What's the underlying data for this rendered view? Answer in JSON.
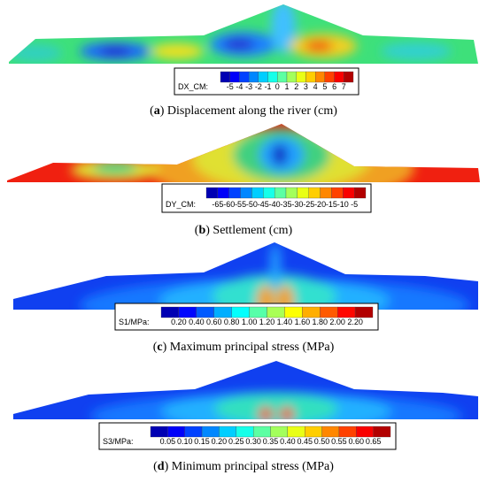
{
  "panels": [
    {
      "caption": [
        "(",
        "a",
        ") Displacement along the river (cm)"
      ],
      "legend_title": "DX_CM:",
      "legend_ticks": [
        "-5",
        "-4",
        "-3",
        "-2",
        "-1",
        "0",
        "1",
        "2",
        "3",
        "4",
        "5",
        "6",
        "7"
      ]
    },
    {
      "caption": [
        "(",
        "b",
        ") Settlement (cm)"
      ],
      "legend_title": "DY_CM:",
      "legend_ticks": [
        "-65",
        "-60",
        "-55",
        "-50",
        "-45",
        "-40",
        "-35",
        "-30",
        "-25",
        "-20",
        "-15",
        "-10",
        "-5"
      ]
    },
    {
      "caption": [
        "(",
        "c",
        ") Maximum principal stress (MPa)"
      ],
      "legend_title": "S1/MPa:",
      "legend_ticks": [
        "0.20",
        "0.40",
        "0.60",
        "0.80",
        "1.00",
        "1.20",
        "1.40",
        "1.60",
        "1.80",
        "2.00",
        "2.20"
      ]
    },
    {
      "caption": [
        "(",
        "d",
        ") Minimum principal stress (MPa)"
      ],
      "legend_title": "S3/MPa:",
      "legend_ticks": [
        "0.05",
        "0.10",
        "0.15",
        "0.20",
        "0.25",
        "0.30",
        "0.35",
        "0.40",
        "0.45",
        "0.50",
        "0.55",
        "0.60",
        "0.65"
      ]
    }
  ]
}
